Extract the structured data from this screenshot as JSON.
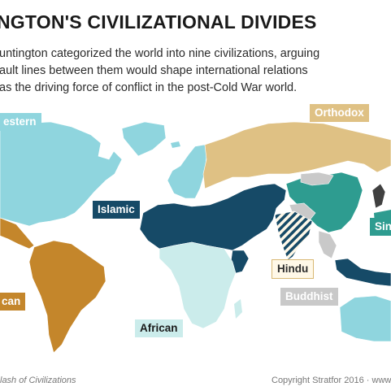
{
  "header": {
    "title": "NGTON'S CIVILIZATIONAL DIVIDES",
    "subtitle_lines": [
      "untington categorized the world into nine civilizations, arguing",
      "ault lines between them would shape international relations",
      "as the driving force of conflict in the post-Cold War world."
    ]
  },
  "map": {
    "labels": {
      "western": "estern",
      "orthodox": "Orthodox",
      "islamic": "Islamic",
      "sinic": "Sini",
      "hindu": "Hindu",
      "latin": "can",
      "buddhist": "Buddhist",
      "african": "African"
    },
    "colors": {
      "western": "#8fd5de",
      "orthodox": "#dfc184",
      "islamic": "#164a67",
      "sinic": "#2e9c90",
      "hindu": "#dfc184",
      "latin": "#c4862b",
      "buddhist": "#c9c9c9",
      "african": "#cbeceb",
      "japanese": "#404040",
      "ocean": "#ffffff"
    }
  },
  "footer": {
    "source": "lash of Civilizations",
    "copyright": "Copyright Stratfor 2016",
    "site": "www"
  }
}
